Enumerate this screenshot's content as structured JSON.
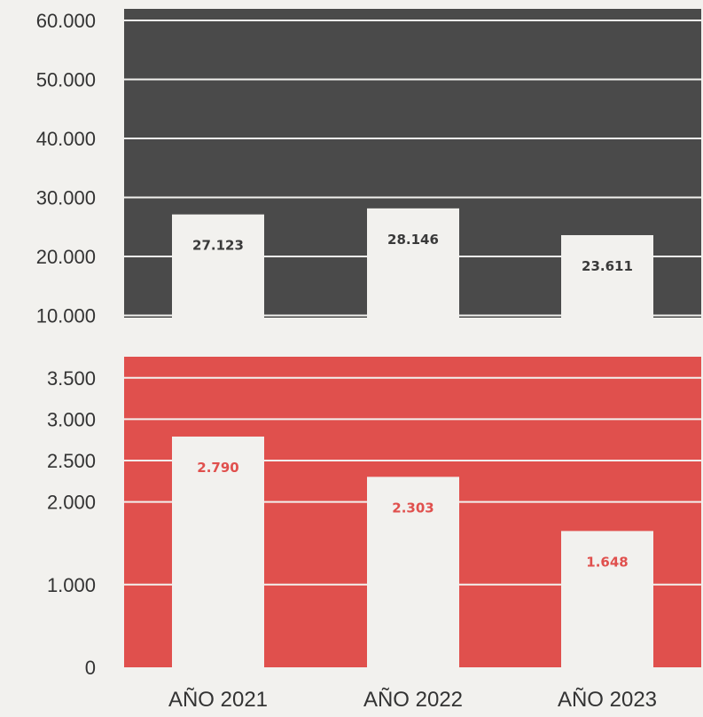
{
  "chart_data": [
    {
      "type": "bar",
      "categories": [
        "AÑO 2021",
        "AÑO 2022",
        "AÑO 2023"
      ],
      "values": [
        27123,
        28146,
        23611
      ],
      "value_labels": [
        "27.123",
        "28.146",
        "23.611"
      ],
      "yticks": [
        10000,
        20000,
        30000,
        40000,
        50000,
        60000
      ],
      "ytick_labels": [
        "10.000",
        "20.000",
        "30.000",
        "40.000",
        "50.000",
        "60.000"
      ],
      "ylim": [
        10000,
        62000
      ],
      "grid": true,
      "colors": {
        "background": "#4a4a4a",
        "bar": "#f2f1ee",
        "label": "#3a3a3a"
      }
    },
    {
      "type": "bar",
      "categories": [
        "AÑO 2021",
        "AÑO 2022",
        "AÑO 2023"
      ],
      "values": [
        2790,
        2303,
        1648
      ],
      "value_labels": [
        "2.790",
        "2.303",
        "1.648"
      ],
      "yticks": [
        0,
        1000,
        2000,
        2500,
        3000,
        3500
      ],
      "ytick_labels": [
        "0",
        "1.000",
        "2.000",
        "2.500",
        "3.000",
        "3.500"
      ],
      "ylim": [
        0,
        3750
      ],
      "grid": true,
      "colors": {
        "background": "#e0504d",
        "bar": "#f2f1ee",
        "label": "#e0504d"
      }
    }
  ]
}
